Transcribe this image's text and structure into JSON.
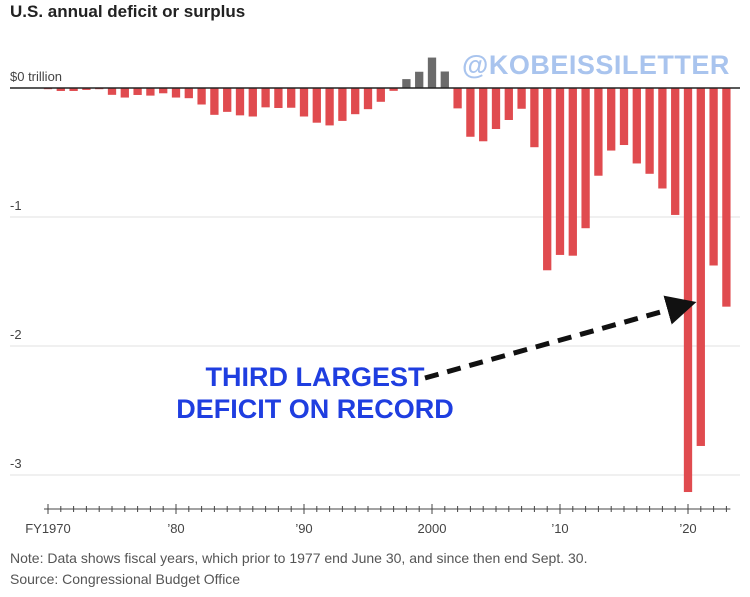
{
  "header": {
    "title": "U.S. annual deficit or surplus",
    "watermark": "@KOBEISSILETTER"
  },
  "annotation": {
    "line1": "THIRD LARGEST",
    "line2": "DEFICIT ON RECORD"
  },
  "footer": {
    "note": "Note: Data shows fiscal years, which prior to 1977 end June 30, and since then end Sept. 30.",
    "source": "Source: Congressional Budget Office"
  },
  "colors": {
    "deficit": "#e04b4f",
    "surplus": "#6b6b6b",
    "arrow": "#111111",
    "callout": "#1f3ee0"
  },
  "chart_data": {
    "type": "bar",
    "title": "U.S. annual deficit or surplus",
    "ylabel": "",
    "ylim": [
      -3.3,
      0.3
    ],
    "grid": true,
    "y_ticks": [
      {
        "value": 0,
        "label": "$0 trillion"
      },
      {
        "value": -1,
        "label": "-1"
      },
      {
        "value": -2,
        "label": "-2"
      },
      {
        "value": -3,
        "label": "-3"
      }
    ],
    "x_ticks": [
      {
        "value": 1970,
        "label": "FY1970"
      },
      {
        "value": 1980,
        "label": "’80"
      },
      {
        "value": 1990,
        "label": "’90"
      },
      {
        "value": 2000,
        "label": "2000"
      },
      {
        "value": 2010,
        "label": "’10"
      },
      {
        "value": 2020,
        "label": "’20"
      }
    ],
    "x": [
      1970,
      1971,
      1972,
      1973,
      1974,
      1975,
      1976,
      1977,
      1978,
      1979,
      1980,
      1981,
      1982,
      1983,
      1984,
      1985,
      1986,
      1987,
      1988,
      1989,
      1990,
      1991,
      1992,
      1993,
      1994,
      1995,
      1996,
      1997,
      1998,
      1999,
      2000,
      2001,
      2002,
      2003,
      2004,
      2005,
      2006,
      2007,
      2008,
      2009,
      2010,
      2011,
      2012,
      2013,
      2014,
      2015,
      2016,
      2017,
      2018,
      2019,
      2020,
      2021,
      2022,
      2023
    ],
    "values": [
      -0.003,
      -0.023,
      -0.023,
      -0.015,
      -0.006,
      -0.053,
      -0.074,
      -0.054,
      -0.059,
      -0.041,
      -0.074,
      -0.079,
      -0.128,
      -0.208,
      -0.185,
      -0.212,
      -0.221,
      -0.15,
      -0.155,
      -0.153,
      -0.221,
      -0.269,
      -0.29,
      -0.255,
      -0.203,
      -0.164,
      -0.107,
      -0.022,
      0.069,
      0.126,
      0.236,
      0.128,
      -0.158,
      -0.378,
      -0.413,
      -0.318,
      -0.248,
      -0.161,
      -0.459,
      -1.413,
      -1.294,
      -1.3,
      -1.087,
      -0.68,
      -0.485,
      -0.442,
      -0.585,
      -0.665,
      -0.779,
      -0.984,
      -3.132,
      -2.775,
      -1.376,
      -1.695
    ]
  }
}
